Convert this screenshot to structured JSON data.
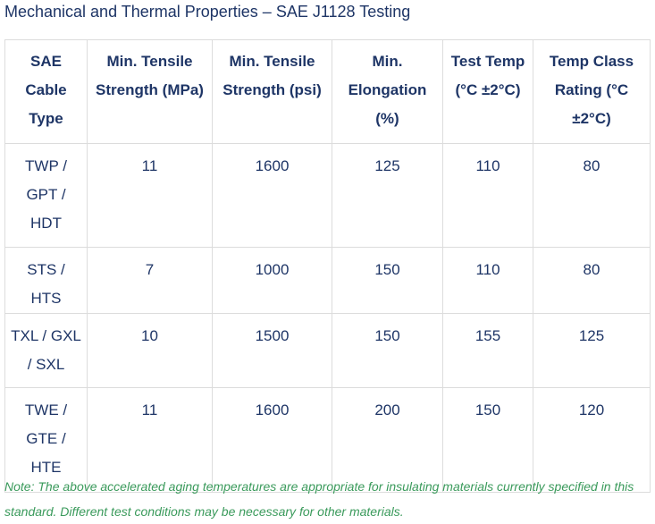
{
  "title": "Mechanical and Thermal Properties – SAE J1128 Testing",
  "table": {
    "header": [
      "SAE Cable Type",
      "Min. Tensile Strength (MPa)",
      "Min. Tensile Strength (psi)",
      "Min. Elongation (%)",
      "Test Temp (°C ±2°C)",
      "Temp Class Rating (°C ±2°C)"
    ],
    "rows": [
      [
        "TWP / GPT / HDT",
        11,
        1600,
        125,
        110,
        80
      ],
      [
        "STS / HTS",
        7,
        1000,
        150,
        110,
        80
      ],
      [
        "TXL / GXL / SXL",
        10,
        1500,
        150,
        155,
        125
      ],
      [
        "TWE / GTE / HTE",
        11,
        1600,
        200,
        150,
        120
      ]
    ]
  },
  "note": "Note: The above accelerated aging temperatures are appropriate for insulating materials currently specified in this standard. Different test conditions may be necessary for other materials."
}
